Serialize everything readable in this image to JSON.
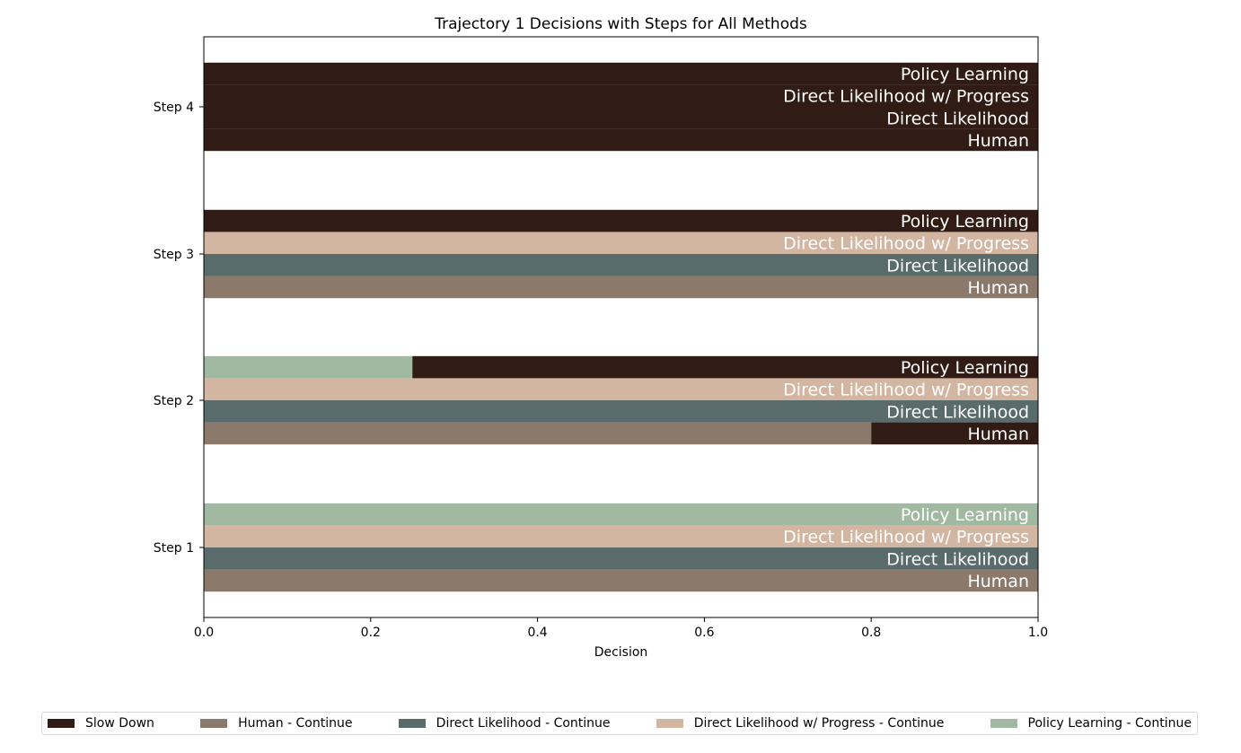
{
  "chart_data": {
    "type": "bar",
    "orientation": "horizontal-stacked",
    "title": "Trajectory 1 Decisions with Steps for All Methods",
    "xlabel": "Decision",
    "ylabel": "",
    "xlim": [
      0,
      1
    ],
    "xticks": [
      "0.0",
      "0.2",
      "0.4",
      "0.6",
      "0.8",
      "1.0"
    ],
    "categories": [
      "Step 1",
      "Step 2",
      "Step 3",
      "Step 4"
    ],
    "methods": [
      "Human",
      "Direct Likelihood",
      "Direct Likelihood w/ Progress",
      "Policy Learning"
    ],
    "colors": {
      "slow_down": "#301c14",
      "Human": "#8b7a6c",
      "Direct Likelihood": "#5a6b6c",
      "Direct Likelihood w/ Progress": "#d3b6a2",
      "Policy Learning": "#a2b9a1"
    },
    "continue_fraction": {
      "Step 1": [
        1.0,
        1.0,
        1.0,
        1.0
      ],
      "Step 2": [
        0.8,
        1.0,
        1.0,
        0.25
      ],
      "Step 3": [
        1.0,
        1.0,
        1.0,
        0.0
      ],
      "Step 4": [
        0.0,
        0.0,
        0.0,
        0.0
      ]
    },
    "legend": {
      "placement": "bottom",
      "entries": [
        {
          "label": "Slow Down",
          "color": "#301c14"
        },
        {
          "label": "Human - Continue",
          "color": "#8b7a6c"
        },
        {
          "label": "Direct Likelihood - Continue",
          "color": "#5a6b6c"
        },
        {
          "label": "Direct Likelihood w/ Progress - Continue",
          "color": "#d3b6a2"
        },
        {
          "label": "Policy Learning - Continue",
          "color": "#a2b9a1"
        }
      ]
    }
  }
}
